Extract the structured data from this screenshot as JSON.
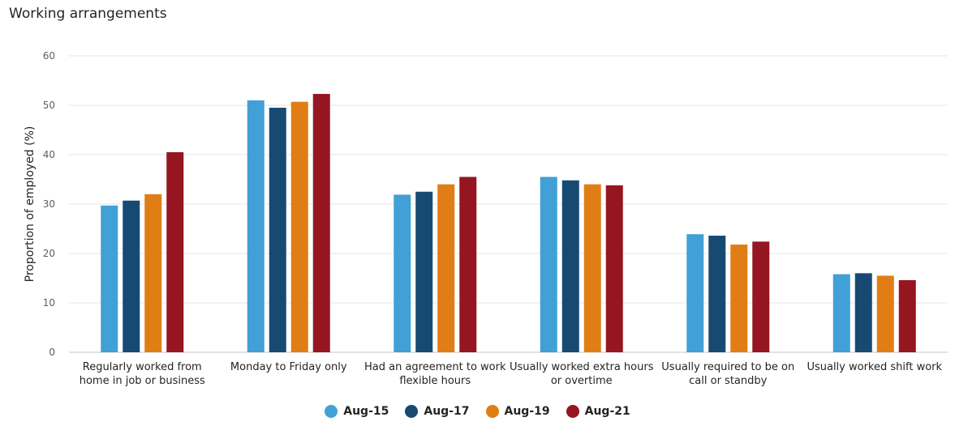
{
  "chart_data": {
    "type": "bar",
    "title": "Working arrangements",
    "xlabel": "",
    "ylabel": "Proportion of employed (%)",
    "ylim": [
      0,
      60
    ],
    "yticks": [
      0,
      10,
      20,
      30,
      40,
      50,
      60
    ],
    "grid": true,
    "legend_position": "bottom-center",
    "categories": [
      [
        "Regularly worked from",
        "home in job or business"
      ],
      [
        "Monday to Friday only"
      ],
      [
        "Had an agreement to work",
        "flexible hours"
      ],
      [
        "Usually worked extra hours",
        "or overtime"
      ],
      [
        "Usually required to be on",
        "call or standby"
      ],
      [
        "Usually worked shift work"
      ]
    ],
    "series": [
      {
        "name": "Aug-15",
        "color": "#41a0d6",
        "values": [
          29.7,
          51.0,
          31.9,
          35.5,
          23.9,
          15.8
        ]
      },
      {
        "name": "Aug-17",
        "color": "#174a73",
        "values": [
          30.7,
          49.5,
          32.5,
          34.8,
          23.6,
          16.0
        ]
      },
      {
        "name": "Aug-19",
        "color": "#e07e15",
        "values": [
          32.0,
          50.7,
          34.0,
          34.0,
          21.8,
          15.5
        ]
      },
      {
        "name": "Aug-21",
        "color": "#951521",
        "values": [
          40.5,
          52.3,
          35.5,
          33.8,
          22.4,
          14.6
        ]
      }
    ]
  }
}
